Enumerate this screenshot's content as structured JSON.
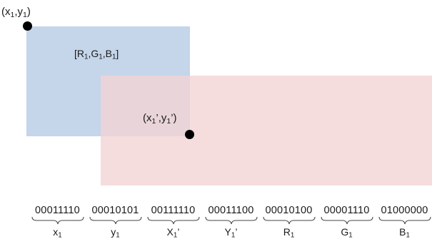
{
  "diagram": {
    "colors": {
      "rect_blue": "#c5d5ea",
      "rect_pink": "#f2d4d4",
      "overlap_hint": "#d3c6d0",
      "dot": "#000000"
    },
    "point_start": {
      "x": "x",
      "x_sub": "1",
      "sep": ",",
      "y": "y",
      "y_sub": "1"
    },
    "point_end": {
      "x": "x",
      "x_sub": "1",
      "x_prime": "’",
      "sep": ",",
      "y": "y",
      "y_sub": "1",
      "y_prime": "’"
    },
    "rgb_label": {
      "open": "[",
      "r": "R",
      "r_sub": "1",
      "g": "G",
      "g_sub": "1",
      "b": "B",
      "b_sub": "1",
      "close": "]"
    },
    "bit_fields": [
      {
        "bits": "00011110",
        "label": "x",
        "label_sub": "1",
        "label_prime": ""
      },
      {
        "bits": "00010101",
        "label": "y",
        "label_sub": "1",
        "label_prime": ""
      },
      {
        "bits": "00111110",
        "label": "X",
        "label_sub": "1",
        "label_prime": "’"
      },
      {
        "bits": "00011100",
        "label": "Y",
        "label_sub": "1",
        "label_prime": "’"
      },
      {
        "bits": "00010100",
        "label": "R",
        "label_sub": "1",
        "label_prime": ""
      },
      {
        "bits": "00001110",
        "label": "G",
        "label_sub": "1",
        "label_prime": ""
      },
      {
        "bits": "01000000",
        "label": "B",
        "label_sub": "1",
        "label_prime": ""
      }
    ]
  }
}
